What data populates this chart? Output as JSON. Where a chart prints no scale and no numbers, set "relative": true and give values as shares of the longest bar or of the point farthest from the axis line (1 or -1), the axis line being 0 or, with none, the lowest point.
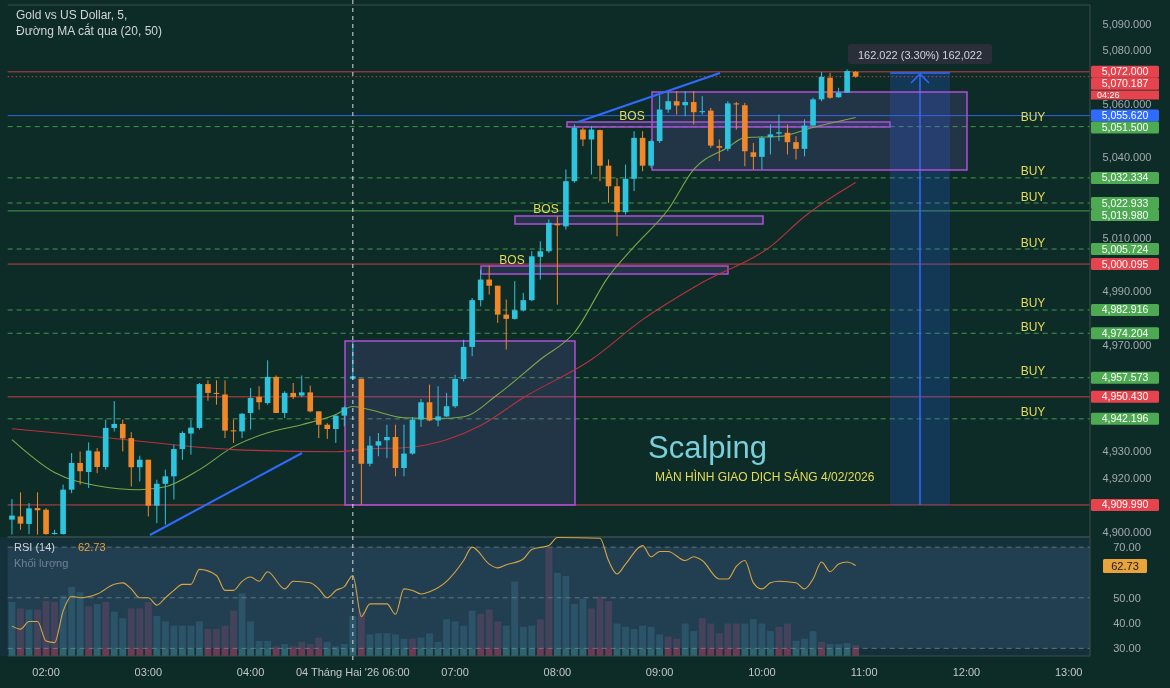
{
  "chart_data": [
    {
      "type": "candlestick",
      "title": "Gold vs US Dollar, 5,",
      "subtitle": "Đường MA cắt qua (20, 50)",
      "tick_labels": "y",
      "categories": [
        null,
        null,
        null,
        null,
        null,
        null,
        null,
        null,
        null,
        null,
        null,
        null,
        null,
        null,
        null,
        null,
        null,
        null,
        null,
        null,
        null,
        null,
        null,
        null,
        null,
        null,
        null,
        null,
        null,
        null,
        null,
        null,
        null,
        null,
        null,
        null,
        null,
        null,
        null,
        null,
        null,
        null,
        null,
        null,
        null,
        null,
        null,
        null,
        null,
        null,
        null,
        null,
        null,
        null,
        null,
        null,
        null,
        null,
        null,
        null,
        null,
        null,
        null,
        null,
        null,
        null,
        null,
        null,
        null,
        null,
        null,
        null,
        null,
        null,
        null,
        null,
        null,
        null,
        null,
        null,
        null,
        null,
        null,
        null,
        null,
        null,
        null,
        null,
        null,
        null,
        null,
        null,
        null,
        null,
        null,
        null,
        null,
        null,
        null,
        null,
        null,
        null,
        null,
        null,
        null,
        null,
        null,
        null,
        null,
        null,
        null,
        null,
        null,
        null,
        null,
        null,
        null,
        null,
        null,
        null,
        null,
        null,
        null,
        null,
        null,
        null,
        null
      ],
      "ohlc": [
        [
          4904.5,
          4912.2,
          4898.9,
          4906.0
        ],
        [
          4905.7,
          4914.7,
          4900.7,
          4903.0
        ],
        [
          4902.9,
          4910.7,
          4899.1,
          4908.7
        ],
        [
          4908.8,
          4914.7,
          4898.9,
          4908.0
        ],
        [
          4908.2,
          4908.8,
          4898.9,
          4899.1
        ],
        [
          4899.1,
          4900.7,
          4898.9,
          4899.5
        ],
        [
          4899.1,
          4917.6,
          4898.9,
          4915.7
        ],
        [
          4915.7,
          4929.4,
          4914.4,
          4925.7
        ],
        [
          4925.7,
          4930.0,
          4917.6,
          4922.6
        ],
        [
          4922.3,
          4933.4,
          4916.3,
          4930.3
        ],
        [
          4930.0,
          4931.3,
          4921.9,
          4924.2
        ],
        [
          4924.2,
          4941.9,
          4923.2,
          4938.8
        ],
        [
          4938.8,
          4948.8,
          4937.5,
          4940.3
        ],
        [
          4940.3,
          4941.9,
          4930.0,
          4934.9
        ],
        [
          4935.0,
          4937.2,
          4916.9,
          4924.1
        ],
        [
          4924.1,
          4928.4,
          4918.8,
          4926.9
        ],
        [
          4926.9,
          4926.9,
          4905.7,
          4909.7
        ],
        [
          4909.7,
          4919.4,
          4903.2,
          4917.9
        ],
        [
          4917.9,
          4923.2,
          4902.6,
          4920.7
        ],
        [
          4920.7,
          4932.5,
          4912.0,
          4930.9
        ],
        [
          4930.9,
          4937.5,
          4926.9,
          4936.9
        ],
        [
          4936.7,
          4941.9,
          4928.8,
          4938.9
        ],
        [
          4938.8,
          4955.6,
          4938.2,
          4955.2
        ],
        [
          4955.2,
          4956.6,
          4949.0,
          4951.9
        ],
        [
          4951.9,
          4956.6,
          4947.5,
          4951.6
        ],
        [
          4951.3,
          4956.6,
          4935.0,
          4937.8
        ],
        [
          4937.9,
          4941.9,
          4933.2,
          4937.5
        ],
        [
          4937.5,
          4944.4,
          4935.0,
          4944.1
        ],
        [
          4944.4,
          4953.7,
          4938.2,
          4950.0
        ],
        [
          4950.4,
          4954.4,
          4945.6,
          4948.4
        ],
        [
          4948.1,
          4964.1,
          4947.5,
          4957.9
        ],
        [
          4957.9,
          4958.4,
          4944.4,
          4944.4
        ],
        [
          4944.4,
          4952.5,
          4942.5,
          4951.9
        ],
        [
          4951.9,
          4955.6,
          4949.6,
          4950.4
        ],
        [
          4950.9,
          4958.4,
          4950.4,
          4952.1
        ],
        [
          4952.1,
          4954.6,
          4944.6,
          4945.0
        ],
        [
          4945.0,
          4945.0,
          4935.0,
          4940.0
        ],
        [
          4940.0,
          4940.6,
          4934.7,
          4938.4
        ],
        [
          4938.4,
          4943.8,
          4933.2,
          4943.4
        ],
        [
          4943.4,
          4946.9,
          4939.4,
          4946.5
        ],
        [
          4957.2,
          4971.1,
          4956.8,
          4958.1
        ],
        [
          4957.2,
          4957.2,
          4910.1,
          4925.4
        ],
        [
          4925.4,
          4935.7,
          4924.4,
          4932.2
        ],
        [
          4932.2,
          4936.9,
          4928.2,
          4933.8
        ],
        [
          4934.2,
          4940.0,
          4927.5,
          4935.4
        ],
        [
          4935.4,
          4940.0,
          4920.7,
          4923.8
        ],
        [
          4923.8,
          4940.0,
          4920.7,
          4929.2
        ],
        [
          4929.2,
          4942.9,
          4928.8,
          4941.9
        ],
        [
          4941.9,
          4949.6,
          4939.2,
          4948.4
        ],
        [
          4948.4,
          4955.0,
          4941.3,
          4941.6
        ],
        [
          4941.6,
          4954.4,
          4939.4,
          4943.1
        ],
        [
          4943.1,
          4951.9,
          4942.9,
          4946.9
        ],
        [
          4946.9,
          4958.7,
          4946.3,
          4957.1
        ],
        [
          4957.1,
          4971.8,
          4956.2,
          4969.1
        ],
        [
          4969.1,
          4987.4,
          4965.6,
          4986.6
        ],
        [
          4986.6,
          4998.0,
          4984.3,
          4994.3
        ],
        [
          4994.3,
          4999.5,
          4988.7,
          4992.0
        ],
        [
          4992.0,
          4992.0,
          4978.1,
          4981.2
        ],
        [
          4981.2,
          4986.8,
          4968.1,
          4979.6
        ],
        [
          4979.6,
          4993.7,
          4979.3,
          4982.8
        ],
        [
          4982.8,
          4989.3,
          4982.4,
          4986.6
        ],
        [
          4986.6,
          5004.9,
          4986.2,
          5003.0
        ],
        [
          5002.8,
          5008.6,
          4994.3,
          5004.9
        ],
        [
          5004.9,
          5016.8,
          5004.3,
          5015.5
        ],
        [
          5015.2,
          5018.0,
          4984.9,
          5014.6
        ],
        [
          5014.2,
          5035.5,
          5013.0,
          5031.1
        ],
        [
          5031.1,
          5052.3,
          5030.5,
          5051.1
        ],
        [
          5050.4,
          5051.1,
          5044.2,
          5046.7
        ],
        [
          5046.7,
          5051.7,
          5033.6,
          5050.4
        ],
        [
          5050.2,
          5050.4,
          5031.1,
          5036.9
        ],
        [
          5036.9,
          5039.2,
          5023.0,
          5029.2
        ],
        [
          5029.2,
          5032.3,
          5010.5,
          5019.5
        ],
        [
          5019.5,
          5037.3,
          5018.6,
          5032.0
        ],
        [
          5032.0,
          5049.8,
          5027.4,
          5047.3
        ],
        [
          5047.3,
          5049.8,
          5034.8,
          5036.9
        ],
        [
          5036.9,
          5046.7,
          5036.1,
          5046.1
        ],
        [
          5046.1,
          5063.2,
          5045.4,
          5057.9
        ],
        [
          5057.9,
          5064.2,
          5056.7,
          5061.0
        ],
        [
          5061.0,
          5064.8,
          5056.0,
          5059.4
        ],
        [
          5059.5,
          5064.8,
          5055.4,
          5060.7
        ],
        [
          5060.7,
          5064.8,
          5052.3,
          5056.9
        ],
        [
          5056.9,
          5062.9,
          5056.0,
          5057.3
        ],
        [
          5057.5,
          5058.5,
          5043.6,
          5044.4
        ],
        [
          5044.2,
          5046.7,
          5038.6,
          5043.6
        ],
        [
          5043.2,
          5061.0,
          5042.3,
          5060.2
        ],
        [
          5060.2,
          5060.7,
          5050.4,
          5059.8
        ],
        [
          5059.5,
          5060.4,
          5036.7,
          5042.3
        ],
        [
          5041.9,
          5045.4,
          5035.5,
          5040.2
        ],
        [
          5040.2,
          5047.9,
          5035.5,
          5047.3
        ],
        [
          5047.6,
          5052.3,
          5041.1,
          5048.6
        ],
        [
          5048.9,
          5056.0,
          5046.1,
          5049.4
        ],
        [
          5049.2,
          5052.3,
          5041.1,
          5045.7
        ],
        [
          5045.7,
          5047.9,
          5039.2,
          5043.2
        ],
        [
          5043.2,
          5054.2,
          5040.4,
          5051.9
        ],
        [
          5051.9,
          5062.3,
          5051.7,
          5061.7
        ],
        [
          5061.7,
          5071.9,
          5061.0,
          5070.1
        ],
        [
          5069.8,
          5071.6,
          5061.9,
          5062.3
        ],
        [
          5062.5,
          5066.0,
          5062.3,
          5064.2
        ],
        [
          5064.2,
          5072.9,
          5064.2,
          5072.3
        ],
        [
          5072.0,
          5072.3,
          5069.8,
          5070.2
        ],
        null,
        null,
        null,
        null,
        null,
        null,
        null,
        null,
        null,
        null,
        null,
        null,
        null,
        null,
        null,
        null,
        null,
        null,
        null,
        null,
        null,
        null,
        null,
        null,
        null,
        null,
        null
      ],
      "colors": [
        "#2ec4dd",
        "#f0882a",
        "#2ec4dd",
        "#f0882a",
        "#f0882a",
        "#2ec4dd",
        "#2ec4dd",
        "#2ec4dd",
        "#f0882a",
        "#2ec4dd",
        "#f0882a",
        "#2ec4dd",
        "#2ec4dd",
        "#f0882a",
        "#f0882a",
        "#2ec4dd",
        "#f0882a",
        "#2ec4dd",
        "#2ec4dd",
        "#2ec4dd",
        "#2ec4dd",
        "#2ec4dd",
        "#2ec4dd",
        "#f0882a",
        "#f0882a",
        "#f0882a",
        "#f0882a",
        "#2ec4dd",
        "#2ec4dd",
        "#f0882a",
        "#2ec4dd",
        "#f0882a",
        "#2ec4dd",
        "#f0882a",
        "#2ec4dd",
        "#f0882a",
        "#f0882a",
        "#f0882a",
        "#2ec4dd",
        "#2ec4dd",
        "#2ec4dd",
        "#f0882a",
        "#2ec4dd",
        "#2ec4dd",
        "#2ec4dd",
        "#f0882a",
        "#2ec4dd",
        "#2ec4dd",
        "#2ec4dd",
        "#f0882a",
        "#2ec4dd",
        "#2ec4dd",
        "#2ec4dd",
        "#2ec4dd",
        "#2ec4dd",
        "#2ec4dd",
        "#f0882a",
        "#f0882a",
        "#f0882a",
        "#2ec4dd",
        "#2ec4dd",
        "#2ec4dd",
        "#2ec4dd",
        "#2ec4dd",
        "#f0882a",
        "#2ec4dd",
        "#2ec4dd",
        "#f0882a",
        "#2ec4dd",
        "#f0882a",
        "#f0882a",
        "#f0882a",
        "#2ec4dd",
        "#2ec4dd",
        "#f0882a",
        "#2ec4dd",
        "#2ec4dd",
        "#2ec4dd",
        "#f0882a",
        "#2ec4dd",
        "#f0882a",
        "#2ec4dd",
        "#f0882a",
        "#f0882a",
        "#2ec4dd",
        "#f0882a",
        "#f0882a",
        "#f0882a",
        "#2ec4dd",
        "#2ec4dd",
        "#2ec4dd",
        "#f0882a",
        "#f0882a",
        "#2ec4dd",
        "#2ec4dd",
        "#2ec4dd",
        "#f0882a",
        "#2ec4dd",
        "#2ec4dd",
        "#f0882a",
        null,
        null,
        null,
        null,
        null,
        null,
        null,
        null,
        null,
        null,
        null,
        null,
        null,
        null,
        null,
        null,
        null,
        null,
        null,
        null,
        null,
        null,
        null,
        null,
        null,
        null,
        null
      ],
      "series": [
        {
          "type": "line",
          "color": "#7aa84a",
          "values": [
            4934.4,
            null,
            null,
            null,
            null,
            4922.1,
            null,
            null,
            null,
            null,
            4917.2,
            null,
            null,
            null,
            null,
            4915.7,
            null,
            null,
            4916.8,
            null,
            null,
            null,
            4923.2,
            null,
            null,
            null,
            4931.8,
            null,
            null,
            null,
            4937.0,
            null,
            null,
            null,
            4940.0,
            null,
            null,
            null,
            4943.8,
            null,
            4946.8,
            null,
            4945.6,
            null,
            null,
            null,
            4942.6,
            null,
            null,
            null,
            4942.3,
            null,
            null,
            4943.0,
            null,
            null,
            null,
            4951.3,
            null,
            null,
            null,
            null,
            4964.4,
            null,
            null,
            null,
            4974.5,
            null,
            null,
            null,
            4995.4,
            null,
            null,
            5006.6,
            null,
            null,
            null,
            5020.5,
            null,
            null,
            5035.5,
            null,
            null,
            null,
            5043.7,
            null,
            5047.4,
            null,
            null,
            null,
            5047.8,
            null,
            null,
            null,
            5051.2,
            null,
            null,
            null,
            null,
            5054.9,
            null,
            null,
            null,
            null,
            null,
            null,
            null,
            null,
            null,
            null,
            null,
            null,
            null,
            null,
            null,
            null,
            null,
            null,
            null,
            null,
            null,
            null,
            null,
            null,
            null,
            null,
            null
          ]
        },
        {
          "type": "line",
          "color": "#b8323f",
          "values": [
            4938.5,
            null,
            null,
            null,
            null,
            null,
            null,
            null,
            null,
            null,
            4935.5,
            null,
            null,
            null,
            null,
            null,
            null,
            null,
            null,
            null,
            null,
            null,
            null,
            null,
            null,
            null,
            4930.7,
            null,
            null,
            null,
            null,
            null,
            null,
            null,
            null,
            null,
            null,
            null,
            4929.9,
            null,
            null,
            null,
            4931.0,
            null,
            null,
            null,
            4931.4,
            null,
            null,
            null,
            null,
            4934.4,
            null,
            null,
            null,
            4939.7,
            null,
            null,
            null,
            null,
            4950.1,
            null,
            null,
            null,
            null,
            null,
            null,
            null,
            4964.4,
            null,
            null,
            null,
            null,
            null,
            4979.3,
            null,
            null,
            null,
            null,
            null,
            null,
            4993.2,
            null,
            null,
            null,
            null,
            null,
            null,
            null,
            5006.6,
            null,
            null,
            null,
            5017.9,
            null,
            null,
            null,
            null,
            null,
            5030.6,
            null,
            null,
            null,
            null,
            null,
            null,
            null,
            null,
            null,
            null,
            null,
            null,
            null,
            null,
            null,
            null,
            null,
            null,
            null,
            null,
            null,
            null,
            null,
            null,
            null,
            null,
            null
          ]
        }
      ],
      "ylim": [
        4898,
        5097
      ],
      "yticks": [
        {
          "value": 4900,
          "label": "4,900.000"
        },
        {
          "value": 4920,
          "label": "4,920.000"
        },
        {
          "value": 4930,
          "label": "4,930.000"
        },
        {
          "value": 4970,
          "label": "4,970.000"
        },
        {
          "value": 4990,
          "label": "4,990.000"
        },
        {
          "value": 5010,
          "label": "5,010.000"
        },
        {
          "value": 5040,
          "label": "5,040.000"
        },
        {
          "value": 5060,
          "label": "5,060.000"
        },
        {
          "value": 5080,
          "label": "5,080.000"
        },
        {
          "value": 5090,
          "label": "5,090.000"
        }
      ],
      "ref_lines": [
        {
          "axis": "y",
          "value": 5072.0,
          "label": "5,072.000",
          "color": "#e5434d"
        },
        {
          "axis": "y",
          "value": 5070.187,
          "label": "5,070.187",
          "color": "#e5434d",
          "line_style": "dotted"
        },
        {
          "axis": "y",
          "value": 5055.62,
          "label": "5,055.620",
          "color": "#2f6bff"
        },
        {
          "axis": "y",
          "value": 5051.5,
          "label": "5,051.500",
          "color": "#4eaa52",
          "line_style": "dashed"
        },
        {
          "axis": "y",
          "value": 5032.334,
          "label": "5,032.334",
          "color": "#4eaa52",
          "line_style": "dashed"
        },
        {
          "axis": "y",
          "value": 5022.933,
          "label": "5,022.933",
          "color": "#4eaa52",
          "line_style": "dashed"
        },
        {
          "axis": "y",
          "value": 5019.98,
          "label": "5,019.980",
          "color": "#4eaa52"
        },
        {
          "axis": "y",
          "value": 5005.724,
          "label": "5,005.724",
          "color": "#4eaa52",
          "line_style": "dashed"
        },
        {
          "axis": "y",
          "value": 5000.095,
          "label": "5,000.095",
          "color": "#e5434d"
        },
        {
          "axis": "y",
          "value": 4982.916,
          "label": "4,982.916",
          "color": "#4eaa52",
          "line_style": "dashed"
        },
        {
          "axis": "y",
          "value": 4974.204,
          "label": "4,974.204",
          "color": "#4eaa52",
          "line_style": "dashed"
        },
        {
          "axis": "y",
          "value": 4957.573,
          "label": "4,957.573",
          "color": "#4eaa52",
          "line_style": "dashed"
        },
        {
          "axis": "y",
          "value": 4950.43,
          "label": "4,950.430",
          "color": "#e5434d"
        },
        {
          "axis": "y",
          "value": 4942.196,
          "label": "4,942.196",
          "color": "#4eaa52",
          "line_style": "dashed"
        },
        {
          "axis": "y",
          "value": 4909.99,
          "label": "4,909.990",
          "color": "#e5434d"
        }
      ],
      "annotations": [
        "BOS",
        "BOS",
        "BOS",
        "Scalping",
        "MÀN HÌNH GIAO DỊCH SÁNG 4/02/2026",
        "162.022 (3.30%) 162,022",
        "04:26",
        "BUY",
        "BUY",
        "BUY",
        "BUY",
        "BUY",
        "BUY",
        "BUY",
        "BUY"
      ]
    },
    {
      "type": "line",
      "title": "RSI (14)",
      "categories": [
        null,
        null,
        null,
        null,
        "02:00",
        null,
        null,
        null,
        null,
        null,
        null,
        null,
        null,
        null,
        null,
        null,
        "03:00",
        null,
        null,
        null,
        null,
        null,
        null,
        null,
        null,
        null,
        null,
        null,
        "04:00",
        null,
        null,
        null,
        null,
        null,
        null,
        null,
        null,
        null,
        null,
        null,
        "04 Tháng Hai '26 06:00",
        null,
        null,
        null,
        null,
        null,
        null,
        null,
        null,
        null,
        null,
        null,
        "07:00",
        null,
        null,
        null,
        null,
        null,
        null,
        null,
        null,
        null,
        null,
        null,
        "08:00",
        null,
        null,
        null,
        null,
        null,
        null,
        null,
        null,
        null,
        null,
        null,
        "09:00",
        null,
        null,
        null,
        null,
        null,
        null,
        null,
        null,
        null,
        null,
        null,
        "10:00",
        null,
        null,
        null,
        null,
        null,
        null,
        null,
        null,
        null,
        null,
        null,
        "11:00",
        null,
        null,
        null,
        null,
        null,
        null,
        null,
        null,
        null,
        null,
        null,
        "12:00",
        null,
        null,
        null,
        null,
        null,
        null,
        null,
        null,
        null,
        null,
        null,
        "13:00",
        null,
        null
      ],
      "series": [
        {
          "color": "#d9a441",
          "values": [
            38.8,
            37.6,
            40.6,
            40.6,
            32.9,
            32.3,
            44.7,
            50.6,
            50.0,
            null,
            51.5,
            null,
            55.3,
            55.9,
            53.5,
            50.0,
            50.0,
            47.1,
            50.0,
            52.9,
            55.3,
            55.3,
            61.2,
            null,
            58.8,
            52.9,
            52.9,
            56.5,
            58.2,
            56.5,
            60.3,
            null,
            53.5,
            56.5,
            null,
            55.9,
            53.5,
            50.0,
            52.9,
            54.4,
            58.8,
            42.6,
            47.6,
            null,
            47.6,
            43.5,
            53.5,
            52.9,
            51.5,
            52.4,
            null,
            56.5,
            null,
            64.7,
            70.0,
            null,
            63.3,
            61.8,
            63.0,
            null,
            65.3,
            69.1,
            null,
            70.6,
            73.8,
            null,
            null,
            null,
            null,
            73.5,
            64.7,
            59.4,
            63.3,
            null,
            70.6,
            66.2,
            68.3,
            68.3,
            null,
            64.7,
            66.2,
            64.7,
            null,
            57.4,
            57.4,
            62.4,
            64.7,
            55.9,
            53.5,
            55.9,
            56.5,
            null,
            55.9,
            53.5,
            57.4,
            64.1,
            60.3,
            63.3,
            64.1,
            62.73,
            null,
            null,
            null,
            null,
            null,
            null,
            null,
            null,
            null,
            null,
            null,
            null,
            null,
            null,
            null,
            null,
            null,
            null,
            null,
            null,
            null,
            null,
            null,
            null,
            null,
            null,
            null
          ]
        }
      ],
      "ylim": [
        27,
        74
      ],
      "yticks": [
        {
          "value": 30,
          "label": "30.00"
        },
        {
          "value": 40,
          "label": "40.00"
        },
        {
          "value": 50,
          "label": "50.00"
        },
        {
          "value": 70,
          "label": "70.00"
        }
      ],
      "bands": [
        {
          "axis": "y",
          "from": 30,
          "to": 70,
          "color": "#2b4a63"
        }
      ],
      "ref_lines": [
        {
          "axis": "y",
          "value": 70,
          "line_style": "dashed"
        },
        {
          "axis": "y",
          "value": 50,
          "line_style": "dashed"
        },
        {
          "axis": "y",
          "value": 30,
          "line_style": "dashed"
        }
      ],
      "annotations": [
        "62.73",
        "62.73"
      ]
    },
    {
      "type": "bar",
      "title": "Khối lượng",
      "relative": true,
      "tick_labels": false,
      "categories": [
        null,
        null,
        null,
        null,
        null,
        null,
        null,
        null,
        null,
        null,
        null,
        null,
        null,
        null,
        null,
        null,
        null,
        null,
        null,
        null,
        null,
        null,
        null,
        null,
        null,
        null,
        null,
        null,
        null,
        null,
        null,
        null,
        null,
        null,
        null,
        null,
        null,
        null,
        null,
        null,
        null,
        null,
        null,
        null,
        null,
        null,
        null,
        null,
        null,
        null,
        null,
        null,
        null,
        null,
        null,
        null,
        null,
        null,
        null,
        null,
        null,
        null,
        null,
        null,
        null,
        null,
        null,
        null,
        null,
        null,
        null,
        null,
        null,
        null,
        null,
        null,
        null,
        null,
        null,
        null,
        null,
        null,
        null,
        null,
        null,
        null,
        null,
        null,
        null,
        null,
        null,
        null,
        null,
        null,
        null,
        null,
        null,
        null,
        null,
        null,
        null,
        null,
        null,
        null,
        null,
        null,
        null,
        null,
        null,
        null,
        null,
        null,
        null,
        null,
        null,
        null,
        null,
        null,
        null,
        null,
        null,
        null,
        null,
        null,
        null,
        null,
        null
      ],
      "values": [
        0.5,
        0.44,
        0.43,
        0.43,
        0.51,
        0.5,
        0.56,
        0.64,
        0.59,
        0.46,
        0.48,
        0.5,
        0.41,
        0.35,
        0.44,
        0.44,
        0.5,
        0.37,
        0.32,
        0.28,
        0.28,
        0.28,
        0.32,
        0.25,
        0.25,
        0.28,
        0.42,
        0.58,
        0.32,
        0.14,
        0.14,
        0.09,
        0.11,
        0.09,
        0.13,
        0.11,
        0.17,
        0.13,
        0.09,
        0.11,
        0.37,
        0.41,
        0.2,
        0.21,
        0.21,
        0.2,
        0.16,
        0.16,
        0.17,
        0.21,
        0.13,
        0.34,
        0.32,
        0.28,
        0.42,
        0.39,
        0.43,
        0.32,
        0.28,
        0.69,
        0.27,
        0.28,
        0.34,
        1,
        0.77,
        0.74,
        0.48,
        0.53,
        0.44,
        0.55,
        0.51,
        0.3,
        0.27,
        0.25,
        0.28,
        0.27,
        0.2,
        0.18,
        0.16,
        0.3,
        0.23,
        0.35,
        0.3,
        0.21,
        0.3,
        0.3,
        0.3,
        0.34,
        0.3,
        0.23,
        0.27,
        0.3,
        0.14,
        0.16,
        0.23,
        0.13,
        0.11,
        0.11,
        0.12,
        0.1,
        null,
        null,
        null,
        null,
        null,
        null,
        null,
        null,
        null,
        null,
        null,
        null,
        null,
        null,
        null,
        null,
        null,
        null,
        null,
        null,
        null,
        null,
        null,
        null,
        null,
        null,
        null
      ],
      "colors": [
        "#2d6470",
        "#6c3a52",
        "#2d6470",
        "#6c3a52",
        "#6c3a52",
        "#6c3a52",
        "#2d6470",
        "#2d6470",
        "#2d6470",
        "#6c3a52",
        "#2d6470",
        "#6c3a52",
        "#2d6470",
        "#2d6470",
        "#6c3a52",
        "#6c3a52",
        "#6c3a52",
        "#2d6470",
        "#2d6470",
        "#2d6470",
        "#2d6470",
        "#2d6470",
        "#2d6470",
        "#6c3a52",
        "#6c3a52",
        "#6c3a52",
        "#6c3a52",
        "#2d6470",
        "#2d6470",
        "#2d6470",
        "#2d6470",
        "#6c3a52",
        "#2d6470",
        "#6c3a52",
        "#6c3a52",
        "#6c3a52",
        "#6c3a52",
        "#2d6470",
        "#2d6470",
        "#2d6470",
        "#2d6470",
        "#6c3a52",
        "#2d6470",
        "#2d6470",
        "#2d6470",
        "#2d6470",
        "#2d6470",
        "#6c3a52",
        "#2d6470",
        "#2d6470",
        "#2d6470",
        "#2d6470",
        "#2d6470",
        "#2d6470",
        "#2d6470",
        "#6c3a52",
        "#6c3a52",
        "#6c3a52",
        "#2d6470",
        "#2d6470",
        "#2d6470",
        "#2d6470",
        "#6c3a52",
        "#6c3a52",
        "#2d6470",
        "#2d6470",
        "#2d6470",
        "#2d6470",
        "#6c3a52",
        "#6c3a52",
        "#6c3a52",
        "#2d6470",
        "#2d6470",
        "#2d6470",
        "#2d6470",
        "#2d6470",
        "#2d6470",
        "#6c3a52",
        "#6c3a52",
        "#2d6470",
        "#2d6470",
        "#6c3a52",
        "#6c3a52",
        "#6c3a52",
        "#6c3a52",
        "#6c3a52",
        "#2d6470",
        "#2d6470",
        "#2d6470",
        "#2d6470",
        "#6c3a52",
        "#6c3a52",
        "#2d6470",
        "#2d6470",
        "#2d6470",
        "#6c3a52",
        "#2d6470",
        "#2d6470",
        "#2d6470",
        "#6c3a52",
        null,
        null,
        null,
        null,
        null,
        null,
        null,
        null,
        null,
        null,
        null,
        null,
        null,
        null,
        null,
        null,
        null,
        null,
        null,
        null,
        null,
        null,
        null,
        null,
        null,
        null,
        null
      ]
    }
  ]
}
